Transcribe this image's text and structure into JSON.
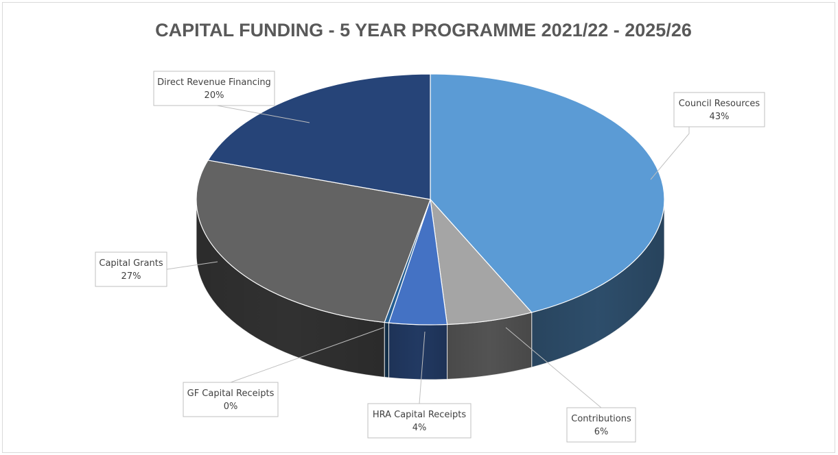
{
  "chart_data": {
    "type": "pie",
    "style": "3d",
    "title": "CAPITAL FUNDING  - 5 YEAR PROGRAMME 2021/22 - 2025/26",
    "slices": [
      {
        "label": "Council Resources",
        "value": 43,
        "value_label": "43%",
        "color": "#5b9bd5"
      },
      {
        "label": "Contributions",
        "value": 6,
        "value_label": "6%",
        "color": "#a5a5a5"
      },
      {
        "label": "HRA Capital Receipts",
        "value": 4,
        "value_label": "4%",
        "color": "#4472c4"
      },
      {
        "label": "GF Capital Receipts",
        "value": 0,
        "value_label": "0%",
        "color": "#255e91"
      },
      {
        "label": "Capital Grants",
        "value": 27,
        "value_label": "27%",
        "color": "#636363"
      },
      {
        "label": "Direct Revenue Financing",
        "value": 20,
        "value_label": "20%",
        "color": "#264478"
      }
    ]
  }
}
